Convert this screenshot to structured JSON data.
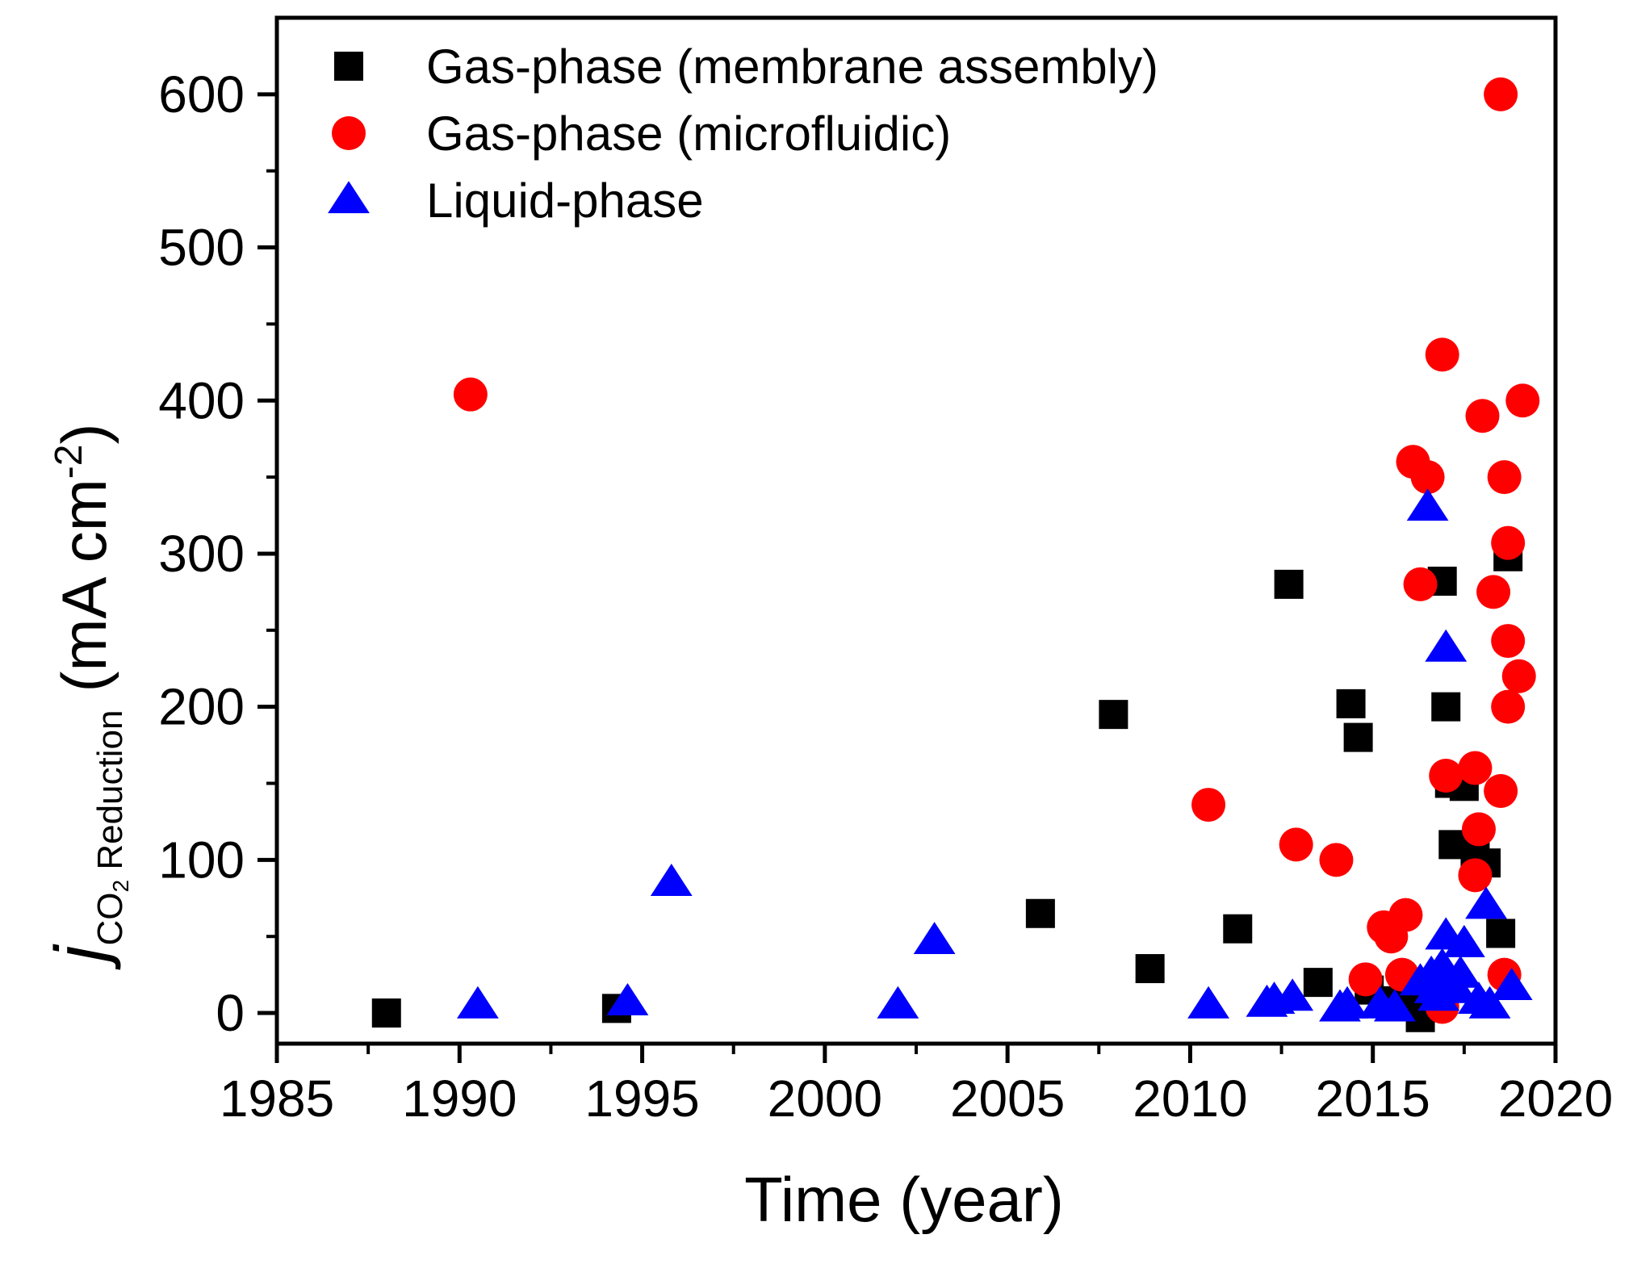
{
  "chart_data": {
    "type": "scatter",
    "xlabel": "Time (year)",
    "ylabel": {
      "symbol": "j",
      "subscript_prefix": "CO",
      "subscript_sub": "2",
      "subscript_suffix": " Reduction",
      "units_prefix": "(mA cm",
      "units_exponent": "-2",
      "units_suffix": ")"
    },
    "xlim": [
      1985,
      2020
    ],
    "ylim": [
      -20,
      650
    ],
    "x_ticks": [
      1985,
      1990,
      1995,
      2000,
      2005,
      2010,
      2015,
      2020
    ],
    "y_ticks": [
      0,
      100,
      200,
      300,
      400,
      500,
      600
    ],
    "legend_position": "top-left",
    "series": [
      {
        "name": "Gas-phase (membrane assembly)",
        "marker": "square",
        "color": "#000000",
        "points": [
          [
            1988.0,
            0
          ],
          [
            1994.3,
            3
          ],
          [
            2005.9,
            65
          ],
          [
            2007.9,
            195
          ],
          [
            2008.9,
            29
          ],
          [
            2011.3,
            55
          ],
          [
            2012.7,
            280
          ],
          [
            2013.5,
            20
          ],
          [
            2014.4,
            202
          ],
          [
            2014.6,
            180
          ],
          [
            2014.9,
            15
          ],
          [
            2015.6,
            8
          ],
          [
            2016.1,
            5
          ],
          [
            2016.3,
            -3
          ],
          [
            2016.9,
            282
          ],
          [
            2017.0,
            200
          ],
          [
            2017.1,
            150
          ],
          [
            2017.2,
            110
          ],
          [
            2017.5,
            148
          ],
          [
            2017.8,
            105
          ],
          [
            2018.1,
            98
          ],
          [
            2018.5,
            52
          ],
          [
            2018.7,
            298
          ]
        ]
      },
      {
        "name": "Gas-phase (microfluidic)",
        "marker": "circle",
        "color": "#ff0000",
        "points": [
          [
            1990.3,
            404
          ],
          [
            2010.5,
            136
          ],
          [
            2012.9,
            110
          ],
          [
            2014.0,
            100
          ],
          [
            2014.8,
            22
          ],
          [
            2015.3,
            56
          ],
          [
            2015.5,
            50
          ],
          [
            2015.8,
            25
          ],
          [
            2015.9,
            64
          ],
          [
            2016.1,
            360
          ],
          [
            2016.3,
            280
          ],
          [
            2016.5,
            350
          ],
          [
            2016.9,
            4
          ],
          [
            2016.9,
            430
          ],
          [
            2017.0,
            155
          ],
          [
            2017.8,
            160
          ],
          [
            2017.8,
            90
          ],
          [
            2017.9,
            120
          ],
          [
            2018.0,
            390
          ],
          [
            2018.3,
            275
          ],
          [
            2018.5,
            145
          ],
          [
            2018.5,
            600
          ],
          [
            2018.6,
            350
          ],
          [
            2018.6,
            25
          ],
          [
            2018.7,
            307
          ],
          [
            2018.7,
            243
          ],
          [
            2018.7,
            200
          ],
          [
            2019.0,
            220
          ],
          [
            2019.1,
            400
          ]
        ]
      },
      {
        "name": "Liquid-phase",
        "marker": "triangle",
        "color": "#0000ff",
        "points": [
          [
            1990.5,
            5
          ],
          [
            1994.6,
            7
          ],
          [
            1995.8,
            85
          ],
          [
            2002.0,
            5
          ],
          [
            2003.0,
            47
          ],
          [
            2010.5,
            5
          ],
          [
            2012.1,
            6
          ],
          [
            2012.3,
            8
          ],
          [
            2012.8,
            10
          ],
          [
            2014.1,
            3
          ],
          [
            2014.3,
            5
          ],
          [
            2015.2,
            5
          ],
          [
            2015.6,
            3
          ],
          [
            2016.3,
            20
          ],
          [
            2016.5,
            330
          ],
          [
            2016.6,
            25
          ],
          [
            2016.7,
            15
          ],
          [
            2016.8,
            10
          ],
          [
            2016.9,
            30
          ],
          [
            2017.0,
            50
          ],
          [
            2017.0,
            238
          ],
          [
            2017.3,
            15
          ],
          [
            2017.4,
            25
          ],
          [
            2017.5,
            45
          ],
          [
            2017.9,
            8
          ],
          [
            2018.1,
            70
          ],
          [
            2018.2,
            5
          ],
          [
            2018.8,
            17
          ]
        ]
      }
    ]
  }
}
